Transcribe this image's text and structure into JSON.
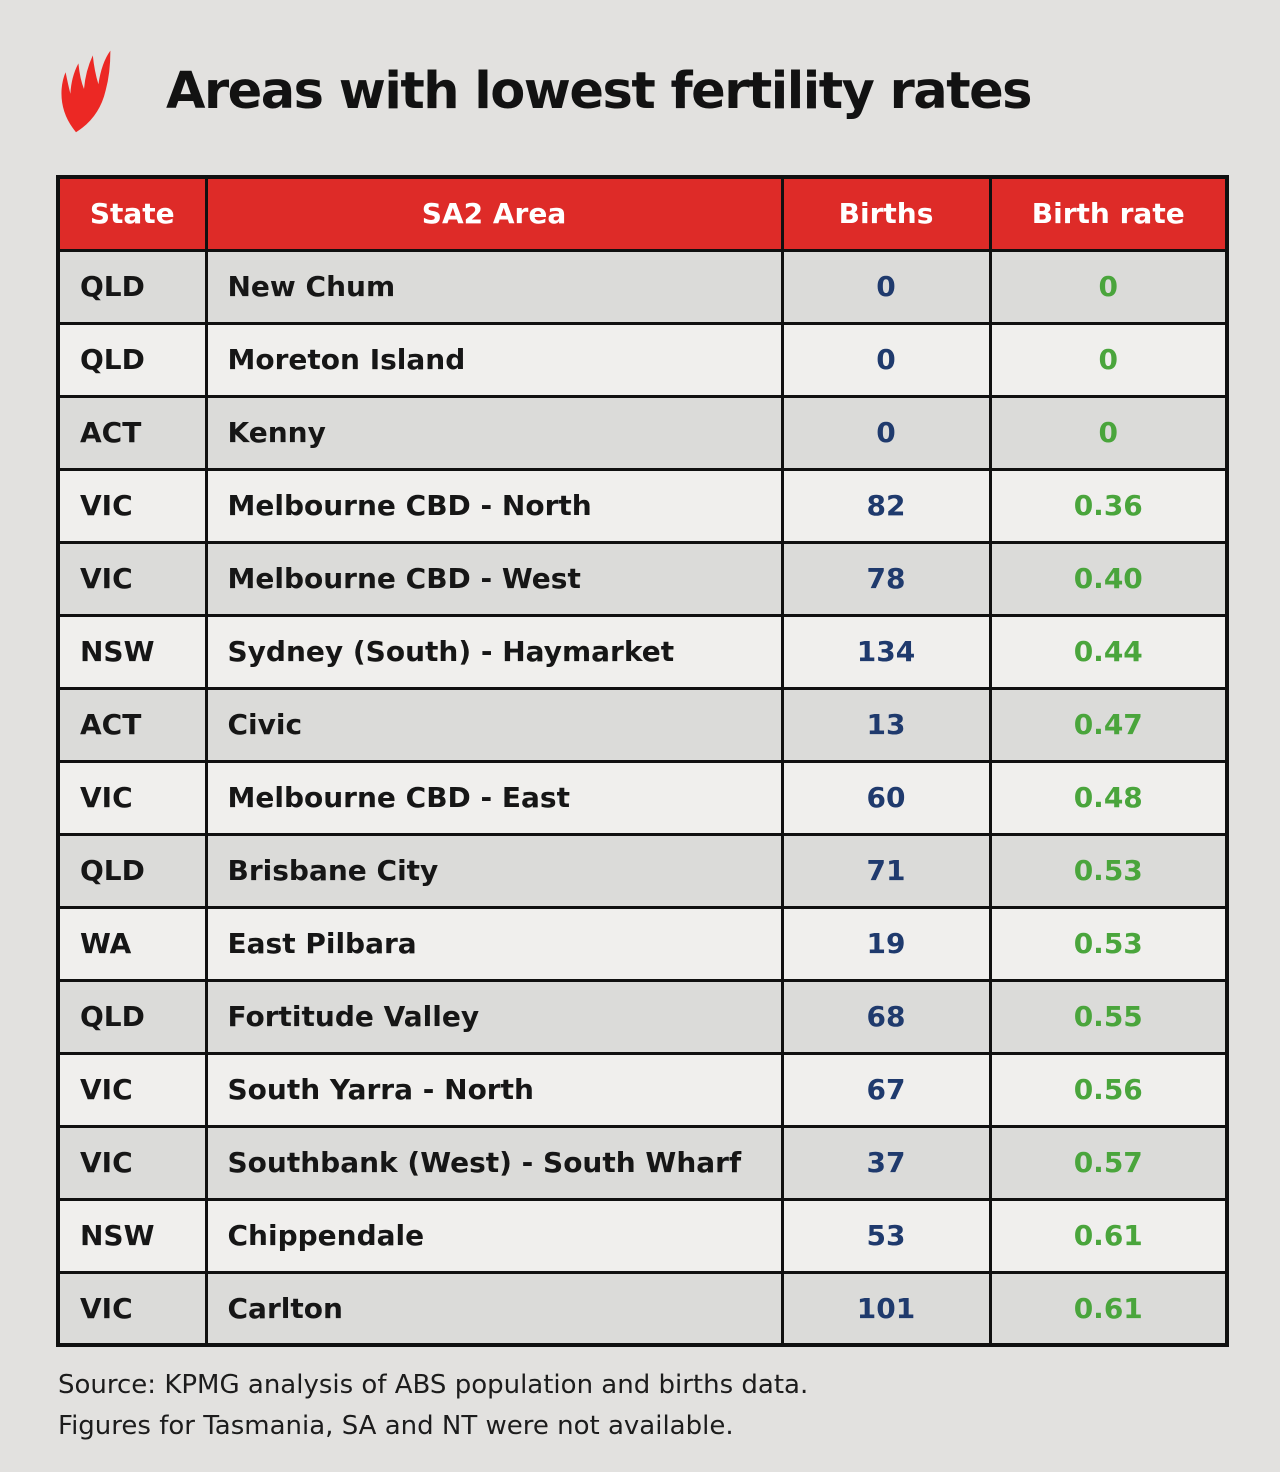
{
  "brand": {
    "logo_name": "sbs-logo",
    "logo_color": "#ec2824"
  },
  "title": "Areas with lowest fertility rates",
  "table": {
    "headers": [
      "State",
      "SA2 Area",
      "Births",
      "Birth rate"
    ],
    "rows": [
      {
        "state": "QLD",
        "area": "New Chum",
        "births": "0",
        "rate": "0"
      },
      {
        "state": "QLD",
        "area": "Moreton Island",
        "births": "0",
        "rate": "0"
      },
      {
        "state": "ACT",
        "area": "Kenny",
        "births": "0",
        "rate": "0"
      },
      {
        "state": "VIC",
        "area": "Melbourne CBD - North",
        "births": "82",
        "rate": "0.36"
      },
      {
        "state": "VIC",
        "area": "Melbourne CBD - West",
        "births": "78",
        "rate": "0.40"
      },
      {
        "state": "NSW",
        "area": "Sydney (South) - Haymarket",
        "births": "134",
        "rate": "0.44"
      },
      {
        "state": "ACT",
        "area": "Civic",
        "births": "13",
        "rate": "0.47"
      },
      {
        "state": "VIC",
        "area": "Melbourne CBD - East",
        "births": "60",
        "rate": "0.48"
      },
      {
        "state": "QLD",
        "area": "Brisbane City",
        "births": "71",
        "rate": "0.53"
      },
      {
        "state": "WA",
        "area": "East Pilbara",
        "births": "19",
        "rate": "0.53"
      },
      {
        "state": "QLD",
        "area": "Fortitude Valley",
        "births": "68",
        "rate": "0.55"
      },
      {
        "state": "VIC",
        "area": "South Yarra - North",
        "births": "67",
        "rate": "0.56"
      },
      {
        "state": "VIC",
        "area": "Southbank (West) - South Wharf",
        "births": "37",
        "rate": "0.57"
      },
      {
        "state": "NSW",
        "area": "Chippendale",
        "births": "53",
        "rate": "0.61"
      },
      {
        "state": "VIC",
        "area": "Carlton",
        "births": "101",
        "rate": "0.61"
      }
    ]
  },
  "footer": {
    "line1": "Source: KPMG analysis of ABS population and births data.",
    "line2": "Figures for Tasmania, SA and NT were not available."
  },
  "colors": {
    "header_bg": "#de2b28",
    "births_text": "#1f3a6d",
    "rate_text": "#4aa53c",
    "row_dark": "#dbdbd9",
    "row_light": "#f0efed",
    "page_bg": "#e2e1df",
    "border": "#101010"
  },
  "chart_data": {
    "type": "table",
    "title": "Areas with lowest fertility rates",
    "columns": [
      "State",
      "SA2 Area",
      "Births",
      "Birth rate"
    ],
    "rows": [
      [
        "QLD",
        "New Chum",
        0,
        0
      ],
      [
        "QLD",
        "Moreton Island",
        0,
        0
      ],
      [
        "ACT",
        "Kenny",
        0,
        0
      ],
      [
        "VIC",
        "Melbourne CBD - North",
        82,
        0.36
      ],
      [
        "VIC",
        "Melbourne CBD - West",
        78,
        0.4
      ],
      [
        "NSW",
        "Sydney (South) - Haymarket",
        134,
        0.44
      ],
      [
        "ACT",
        "Civic",
        13,
        0.47
      ],
      [
        "VIC",
        "Melbourne CBD - East",
        60,
        0.48
      ],
      [
        "QLD",
        "Brisbane City",
        71,
        0.53
      ],
      [
        "WA",
        "East Pilbara",
        19,
        0.53
      ],
      [
        "QLD",
        "Fortitude Valley",
        68,
        0.55
      ],
      [
        "VIC",
        "South Yarra - North",
        67,
        0.56
      ],
      [
        "VIC",
        "Southbank (West) - South Wharf",
        37,
        0.57
      ],
      [
        "NSW",
        "Chippendale",
        53,
        0.61
      ],
      [
        "VIC",
        "Carlton",
        101,
        0.61
      ]
    ],
    "notes": [
      "Source: KPMG analysis of ABS population and births data.",
      "Figures for Tasmania, SA and NT were not available."
    ]
  }
}
